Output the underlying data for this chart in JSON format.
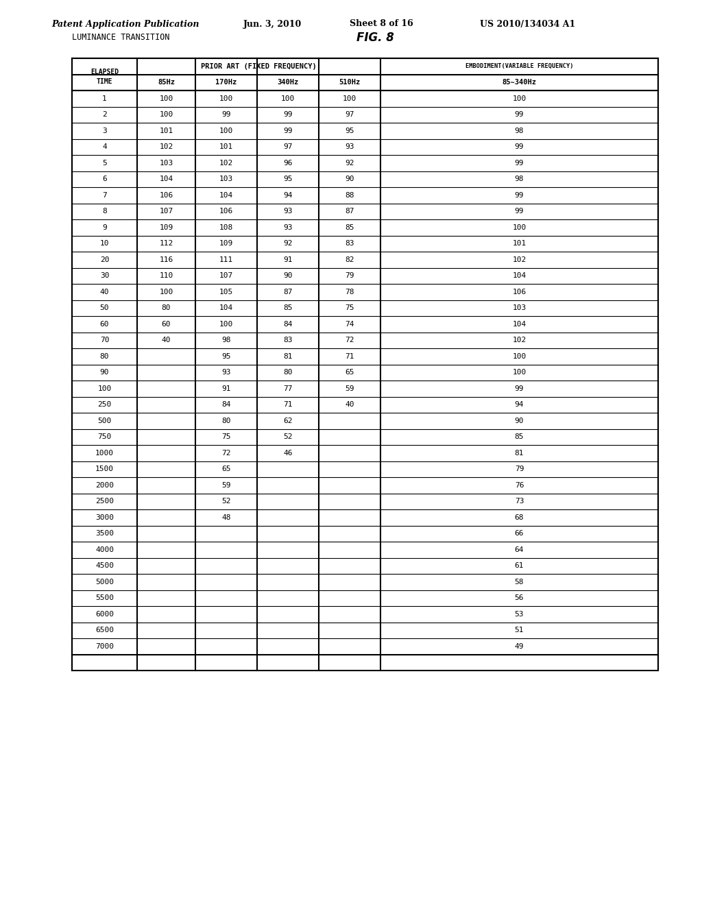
{
  "header_line1": "Patent Application Publication",
  "header_date": "Jun. 3, 2010",
  "header_sheet": "Sheet 8 of 16",
  "header_patent": "US 2010/134034 A1",
  "table_title_left": "LUMINANCE TRANSITION",
  "table_title_right": "FIG. 8",
  "col_headers": [
    "ELAPSED\nTIME",
    "85Hz",
    "170Hz",
    "340Hz",
    "510Hz",
    "85∼340Hz"
  ],
  "col_group1": "PRIOR ART (FIXED FREQUENCY)",
  "col_group2": "EMBODIMENT(VARIABLE FREQUENCY)",
  "rows": [
    [
      "1",
      "100",
      "100",
      "100",
      "100",
      "100"
    ],
    [
      "2",
      "100",
      "99",
      "99",
      "97",
      "99"
    ],
    [
      "3",
      "101",
      "100",
      "99",
      "95",
      "98"
    ],
    [
      "4",
      "102",
      "101",
      "97",
      "93",
      "99"
    ],
    [
      "5",
      "103",
      "102",
      "96",
      "92",
      "99"
    ],
    [
      "6",
      "104",
      "103",
      "95",
      "90",
      "98"
    ],
    [
      "7",
      "106",
      "104",
      "94",
      "88",
      "99"
    ],
    [
      "8",
      "107",
      "106",
      "93",
      "87",
      "99"
    ],
    [
      "9",
      "109",
      "108",
      "93",
      "85",
      "100"
    ],
    [
      "10",
      "112",
      "109",
      "92",
      "83",
      "101"
    ],
    [
      "20",
      "116",
      "111",
      "91",
      "82",
      "102"
    ],
    [
      "30",
      "110",
      "107",
      "90",
      "79",
      "104"
    ],
    [
      "40",
      "100",
      "105",
      "87",
      "78",
      "106"
    ],
    [
      "50",
      "80",
      "104",
      "85",
      "75",
      "103"
    ],
    [
      "60",
      "60",
      "100",
      "84",
      "74",
      "104"
    ],
    [
      "70",
      "40",
      "98",
      "83",
      "72",
      "102"
    ],
    [
      "80",
      "",
      "95",
      "81",
      "71",
      "100"
    ],
    [
      "90",
      "",
      "93",
      "80",
      "65",
      "100"
    ],
    [
      "100",
      "",
      "91",
      "77",
      "59",
      "99"
    ],
    [
      "250",
      "",
      "84",
      "71",
      "40",
      "94"
    ],
    [
      "500",
      "",
      "80",
      "62",
      "",
      "90"
    ],
    [
      "750",
      "",
      "75",
      "52",
      "",
      "85"
    ],
    [
      "1000",
      "",
      "72",
      "46",
      "",
      "81"
    ],
    [
      "1500",
      "",
      "65",
      "",
      "",
      "79"
    ],
    [
      "2000",
      "",
      "59",
      "",
      "",
      "76"
    ],
    [
      "2500",
      "",
      "52",
      "",
      "",
      "73"
    ],
    [
      "3000",
      "",
      "48",
      "",
      "",
      "68"
    ],
    [
      "3500",
      "",
      "",
      "",
      "",
      "66"
    ],
    [
      "4000",
      "",
      "",
      "",
      "",
      "64"
    ],
    [
      "4500",
      "",
      "",
      "",
      "",
      "61"
    ],
    [
      "5000",
      "",
      "",
      "",
      "",
      "58"
    ],
    [
      "5500",
      "",
      "",
      "",
      "",
      "56"
    ],
    [
      "6000",
      "",
      "",
      "",
      "",
      "53"
    ],
    [
      "6500",
      "",
      "",
      "",
      "",
      "51"
    ],
    [
      "7000",
      "",
      "",
      "",
      "",
      "49"
    ]
  ]
}
